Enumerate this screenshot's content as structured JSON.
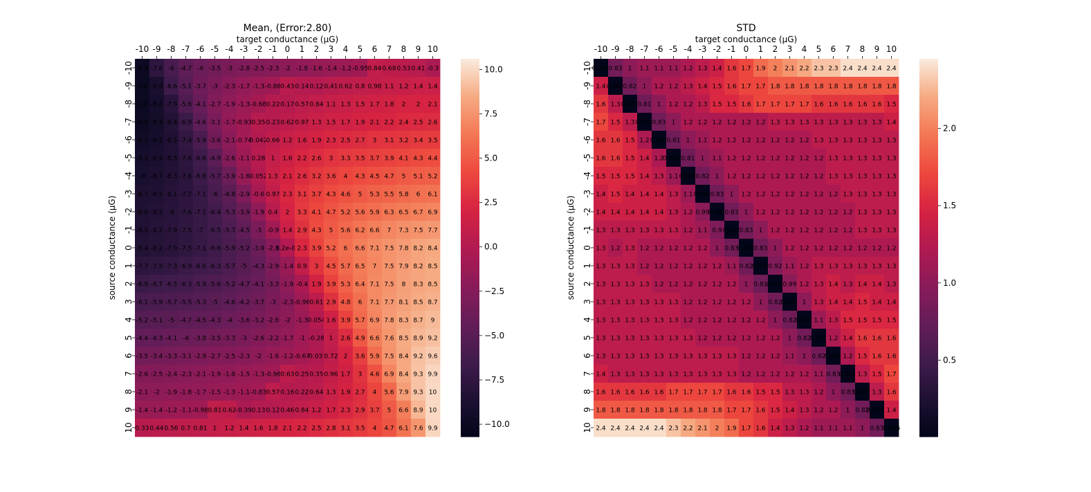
{
  "colormap": "rocket",
  "chart_data": [
    {
      "type": "heatmap",
      "title": "Mean, (Error:2.80)",
      "xlabel": "target conductance (μG)",
      "ylabel": "source conductance (μG)",
      "x_ticks": [
        "-10",
        "-9",
        "-8",
        "-7",
        "-6",
        "-5",
        "-4",
        "-3",
        "-2",
        "-1",
        "0",
        "1",
        "2",
        "3",
        "4",
        "5",
        "6",
        "7",
        "8",
        "9",
        "10"
      ],
      "y_ticks": [
        "-10",
        "-9",
        "-8",
        "-7",
        "-6",
        "-5",
        "-4",
        "-3",
        "-2",
        "-1",
        "0",
        "1",
        "2",
        "3",
        "4",
        "5",
        "6",
        "7",
        "8",
        "9",
        "10"
      ],
      "vmin": -10.7,
      "vmax": 10.6,
      "colorbar_ticks": [
        "10.0",
        "7.5",
        "5.0",
        "2.5",
        "0.0",
        "−2.5",
        "−5.0",
        "−7.5",
        "−10.0"
      ],
      "colorbar_tick_values": [
        10,
        7.5,
        5,
        2.5,
        0,
        -2.5,
        -5,
        -7.5,
        -10
      ],
      "labels": [
        [
          "-9.9",
          "-7.6",
          "-6",
          "-4.7",
          "-4",
          "-3.5",
          "-3",
          "-2.8",
          "-2.5",
          "-2.3",
          "-2",
          "-1.8",
          "-1.6",
          "-1.4",
          "-1.2",
          "-0.95",
          "0.84",
          "0.68",
          "0.53",
          "0.41",
          "-0.3"
        ],
        [
          "-10",
          "-8.9",
          "-6.6",
          "-5.1",
          "-3.7",
          "-3",
          "-2.3",
          "-1.7",
          "-1.3",
          "-0.86",
          "0.43",
          "0.14",
          "0.12",
          "0.41",
          "0.62",
          "0.8",
          "0.98",
          "1.1",
          "1.2",
          "1.4",
          "1.4"
        ],
        [
          "-10",
          "-9.2",
          "-7.9",
          "-5.6",
          "-4.1",
          "-2.7",
          "-1.9",
          "-1.3",
          "-0.68",
          "0.22",
          "0.17",
          "0.57",
          "0.84",
          "1.1",
          "1.3",
          "1.5",
          "1.7",
          "1.8",
          "2",
          "2",
          "2.1"
        ],
        [
          "-9.9",
          "-9.3",
          "-8.4",
          "-6.9",
          "-4.6",
          "-3.1",
          "-1.7",
          "-0.93",
          "0.35",
          "0.23",
          "0.62",
          "0.97",
          "1.3",
          "1.5",
          "1.7",
          "1.9",
          "2.1",
          "2.2",
          "2.4",
          "2.5",
          "2.6"
        ],
        [
          "-9.5",
          "-9.2",
          "-8.5",
          "-7.4",
          "-5.9",
          "-3.6",
          "-2.1",
          "-0.74",
          "0.042",
          "0.66",
          "1.2",
          "1.6",
          "1.9",
          "2.3",
          "2.5",
          "2.7",
          "3",
          "3.1",
          "3.2",
          "3.4",
          "3.5"
        ],
        [
          "-9.2",
          "-8.9",
          "-8.5",
          "-7.6",
          "-6.6",
          "-4.9",
          "-2.6",
          "-1.1",
          "0.28",
          "1",
          "1.6",
          "2.2",
          "2.6",
          "3",
          "3.3",
          "3.5",
          "3.7",
          "3.9",
          "4.1",
          "4.3",
          "4.4"
        ],
        [
          "-9",
          "-8.7",
          "-8.3",
          "-7.8",
          "-6.8",
          "-5.7",
          "-3.9",
          "-1.6",
          "0.052",
          "1.3",
          "2.1",
          "2.6",
          "3.2",
          "3.6",
          "4",
          "4.3",
          "4.5",
          "4.7",
          "5",
          "5.1",
          "5.2"
        ],
        [
          "-8.7",
          "-8.5",
          "-8.1",
          "-7.7",
          "-7.1",
          "-6",
          "-4.8",
          "-2.9",
          "-0.6",
          "0.97",
          "2.3",
          "3.1",
          "3.7",
          "4.3",
          "4.6",
          "5",
          "5.3",
          "5.5",
          "5.8",
          "6",
          "6.1"
        ],
        [
          "-8.6",
          "-8.3",
          "-8",
          "-7.6",
          "-7.1",
          "-6.4",
          "-5.3",
          "-3.9",
          "-1.9",
          "0.4",
          "2",
          "3.3",
          "4.1",
          "4.7",
          "5.2",
          "5.6",
          "5.9",
          "6.3",
          "6.5",
          "6.7",
          "6.9"
        ],
        [
          "-8.5",
          "-8.2",
          "-7.9",
          "-7.5",
          "-7",
          "-6.5",
          "-5.7",
          "-4.5",
          "-3",
          "-0.9",
          "1.4",
          "2.9",
          "4.3",
          "5",
          "5.6",
          "6.2",
          "6.6",
          "7",
          "7.3",
          "7.5",
          "7.7"
        ],
        [
          "-8.4",
          "-8.2",
          "-7.9",
          "-7.5",
          "-7.1",
          "-6.6",
          "-5.9",
          "-5.2",
          "-3.9",
          "-2.3",
          "8.2e-03",
          "2.3",
          "3.9",
          "5.2",
          "6",
          "6.6",
          "7.1",
          "7.5",
          "7.8",
          "8.2",
          "8.4"
        ],
        [
          "-7.7",
          "-7.5",
          "-7.3",
          "-6.9",
          "-6.6",
          "-6.3",
          "-5.7",
          "-5",
          "-4.3",
          "-2.9",
          "-1.4",
          "0.9",
          "3",
          "4.5",
          "5.7",
          "6.5",
          "7",
          "7.5",
          "7.9",
          "8.2",
          "8.5"
        ],
        [
          "-6.9",
          "-6.7",
          "-6.5",
          "-6.3",
          "-5.9",
          "-5.6",
          "-5.2",
          "-4.7",
          "-4.1",
          "-3.3",
          "-1.9",
          "-0.4",
          "1.9",
          "3.9",
          "5.3",
          "6.4",
          "7.1",
          "7.5",
          "8",
          "8.3",
          "8.5"
        ],
        [
          "-6.1",
          "-5.9",
          "-5.7",
          "-5.5",
          "-5.3",
          "-5",
          "-4.6",
          "-4.2",
          "-3.7",
          "-3",
          "-2.3",
          "-0.96",
          "0.61",
          "2.9",
          "4.8",
          "6",
          "7.1",
          "7.7",
          "8.1",
          "8.5",
          "8.7"
        ],
        [
          "-5.2",
          "-5.1",
          "-5",
          "-4.7",
          "-4.5",
          "-4.3",
          "-4",
          "-3.6",
          "-3.2",
          "-2.6",
          "-2",
          "-1.3",
          "0.054",
          "1.6",
          "3.9",
          "5.7",
          "6.9",
          "7.8",
          "8.3",
          "8.7",
          "9"
        ],
        [
          "-4.4",
          "-4.3",
          "-4.1",
          "-4",
          "-3.8",
          "-3.5",
          "-3.3",
          "-3",
          "-2.6",
          "-2.2",
          "-1.7",
          "-1",
          "-0.28",
          "1",
          "2.6",
          "4.9",
          "6.6",
          "7.6",
          "8.5",
          "8.9",
          "9.2"
        ],
        [
          "-3.5",
          "-3.4",
          "-3.3",
          "-3.1",
          "-2.9",
          "-2.7",
          "-2.5",
          "-2.3",
          "-2",
          "-1.6",
          "-1.2",
          "-0.67",
          "-0.031",
          "0.72",
          "2",
          "3.6",
          "5.9",
          "7.5",
          "8.4",
          "9.2",
          "9.6"
        ],
        [
          "-2.6",
          "-2.5",
          "-2.4",
          "-2.3",
          "-2.1",
          "-1.9",
          "-1.8",
          "-1.5",
          "-1.3",
          "-0.96",
          "0.63",
          "0.25",
          "0.35",
          "0.96",
          "1.7",
          "3",
          "4.6",
          "6.9",
          "8.4",
          "9.3",
          "9.9"
        ],
        [
          "-2.1",
          "-2",
          "-1.9",
          "-1.8",
          "-1.7",
          "-1.5",
          "-1.3",
          "-1.1",
          "-0.83",
          "0.57",
          "0.16",
          "0.22",
          "0.64",
          "1.3",
          "1.9",
          "2.7",
          "4",
          "5.6",
          "7.9",
          "9.3",
          "10"
        ],
        [
          "-1.4",
          "-1.4",
          "-1.2",
          "-1.1",
          "-0.98",
          "0.81",
          "0.62",
          "-0.39",
          "0.13",
          "0.12",
          "0.46",
          "0.84",
          "1.2",
          "1.7",
          "2.3",
          "2.9",
          "3.7",
          "5",
          "6.6",
          "8.9",
          "10"
        ],
        [
          "0.33",
          "0.44",
          "0.56",
          "0.7",
          "0.81",
          "1",
          "1.2",
          "1.4",
          "1.6",
          "1.8",
          "2.1",
          "2.2",
          "2.5",
          "2.8",
          "3.1",
          "3.5",
          "4",
          "4.7",
          "6.1",
          "7.6",
          "9.9"
        ]
      ]
    },
    {
      "type": "heatmap",
      "title": "STD",
      "xlabel": "target conductance (μG)",
      "ylabel": "source conductance (μG)",
      "x_ticks": [
        "-10",
        "-9",
        "-8",
        "-7",
        "-6",
        "-5",
        "-4",
        "-3",
        "-2",
        "-1",
        "0",
        "1",
        "2",
        "3",
        "4",
        "5",
        "6",
        "7",
        "8",
        "9",
        "10"
      ],
      "y_ticks": [
        "-10",
        "-9",
        "-8",
        "-7",
        "-6",
        "-5",
        "-4",
        "-3",
        "-2",
        "-1",
        "0",
        "1",
        "2",
        "3",
        "4",
        "5",
        "6",
        "7",
        "8",
        "9",
        "10"
      ],
      "vmin": 0.005,
      "vmax": 2.45,
      "colorbar_ticks": [
        "2.0",
        "1.5",
        "1.0",
        "0.5"
      ],
      "colorbar_tick_values": [
        2.0,
        1.5,
        1.0,
        0.5
      ],
      "labels": [
        [
          "0.005",
          "0.83",
          "1",
          "1.1",
          "1.1",
          "1.1",
          "1.2",
          "1.3",
          "1.4",
          "1.6",
          "1.7",
          "1.9",
          "2",
          "2.1",
          "2.2",
          "2.3",
          "2.3",
          "2.4",
          "2.4",
          "2.4",
          "2.4"
        ],
        [
          "1.4",
          "0.005",
          "0.82",
          "1",
          "1.2",
          "1.2",
          "1.3",
          "1.4",
          "1.5",
          "1.6",
          "1.7",
          "1.7",
          "1.8",
          "1.8",
          "1.8",
          "1.8",
          "1.8",
          "1.8",
          "1.8",
          "1.8",
          "1.8"
        ],
        [
          "1.6",
          "1.3",
          "0.005",
          "0.81",
          "1",
          "1.2",
          "1.2",
          "1.3",
          "1.5",
          "1.5",
          "1.6",
          "1.7",
          "1.7",
          "1.7",
          "1.7",
          "1.6",
          "1.6",
          "1.6",
          "1.6",
          "1.6",
          "1.5"
        ],
        [
          "1.7",
          "1.5",
          "1.3",
          "0.005",
          "0.83",
          "1",
          "1.2",
          "1.2",
          "1.2",
          "1.2",
          "1.2",
          "1.2",
          "1.3",
          "1.3",
          "1.3",
          "1.3",
          "1.3",
          "1.3",
          "1.3",
          "1.3",
          "1.4"
        ],
        [
          "1.6",
          "1.6",
          "1.5",
          "1.2",
          "0.005",
          "0.81",
          "1",
          "1.1",
          "1.2",
          "1.2",
          "1.2",
          "1.2",
          "1.2",
          "1.2",
          "1.2",
          "1.3",
          "1.3",
          "1.3",
          "1.3",
          "1.3",
          "1.3"
        ],
        [
          "1.6",
          "1.6",
          "1.5",
          "1.4",
          "1.2",
          "0.0049",
          "0.81",
          "1",
          "1.1",
          "1.2",
          "1.2",
          "1.2",
          "1.2",
          "1.2",
          "1.2",
          "1.2",
          "1.3",
          "1.3",
          "1.3",
          "1.3",
          "1.3"
        ],
        [
          "1.5",
          "1.5",
          "1.5",
          "1.4",
          "1.3",
          "1.1",
          "0.005",
          "0.82",
          "1",
          "1.2",
          "1.2",
          "1.2",
          "1.2",
          "1.2",
          "1.2",
          "1.2",
          "1.3",
          "1.3",
          "1.3",
          "1.3",
          "1.3"
        ],
        [
          "1.4",
          "1.5",
          "1.4",
          "1.4",
          "1.4",
          "1.3",
          "1.1",
          "0.005",
          "0.83",
          "1",
          "1.2",
          "1.2",
          "1.2",
          "1.2",
          "1.2",
          "1.2",
          "1.2",
          "1.3",
          "1.3",
          "1.3",
          "1.3"
        ],
        [
          "1.4",
          "1.4",
          "1.4",
          "1.4",
          "1.4",
          "1.3",
          "1.2",
          "0.99",
          "0.005",
          "0.83",
          "1",
          "1.2",
          "1.2",
          "1.2",
          "1.2",
          "1.2",
          "1.2",
          "1.2",
          "1.3",
          "1.3",
          "1.3"
        ],
        [
          "1.3",
          "1.3",
          "1.3",
          "1.3",
          "1.3",
          "1.3",
          "1.2",
          "1.1",
          "0.9",
          "0.005",
          "0.83",
          "1",
          "1.2",
          "1.2",
          "1.2",
          "1.2",
          "1.2",
          "1.2",
          "1.3",
          "1.3",
          "1.3"
        ],
        [
          "1.3",
          "1.2",
          "1.3",
          "1.2",
          "1.2",
          "1.2",
          "1.2",
          "1.2",
          "1",
          "0.83",
          "0.005",
          "0.83",
          "1",
          "1.2",
          "1.2",
          "1.2",
          "1.2",
          "1.2",
          "1.2",
          "1.2",
          "1.2"
        ],
        [
          "1.3",
          "1.3",
          "1.3",
          "1.2",
          "1.2",
          "1.2",
          "1.2",
          "1.2",
          "1.2",
          "1.1",
          "0.82",
          "0.005",
          "0.92",
          "1.1",
          "1.2",
          "1.3",
          "1.3",
          "1.3",
          "1.3",
          "1.3",
          "1.3"
        ],
        [
          "1.3",
          "1.3",
          "1.3",
          "1.3",
          "1.2",
          "1.2",
          "1.2",
          "1.2",
          "1.2",
          "1.2",
          "1",
          "0.81",
          "0.005",
          "0.99",
          "1.2",
          "1.3",
          "1.4",
          "1.3",
          "1.4",
          "1.4",
          "1.3"
        ],
        [
          "1.3",
          "1.3",
          "1.3",
          "1.3",
          "1.3",
          "1.3",
          "1.2",
          "1.2",
          "1.2",
          "1.2",
          "1.2",
          "1",
          "0.82",
          "0.005",
          "1",
          "1.3",
          "1.4",
          "1.4",
          "1.5",
          "1.4",
          "1.4"
        ],
        [
          "1.3",
          "1.3",
          "1.3",
          "1.3",
          "1.3",
          "1.3",
          "1.2",
          "1.2",
          "1.2",
          "1.2",
          "1.2",
          "1.2",
          "1",
          "0.82",
          "0.005",
          "1.1",
          "1.3",
          "1.5",
          "1.5",
          "1.5",
          "1.5"
        ],
        [
          "1.3",
          "1.3",
          "1.3",
          "1.3",
          "1.3",
          "1.3",
          "1.3",
          "1.2",
          "1.2",
          "1.2",
          "1.2",
          "1.2",
          "1.2",
          "1",
          "0.82",
          "0.005",
          "1.2",
          "1.4",
          "1.6",
          "1.6",
          "1.6"
        ],
        [
          "1.3",
          "1.3",
          "1.3",
          "1.3",
          "1.3",
          "1.3",
          "1.3",
          "1.3",
          "1.3",
          "1.3",
          "1.2",
          "1.2",
          "1.2",
          "1.1",
          "1",
          "0.82",
          "0.005",
          "1.2",
          "1.5",
          "1.6",
          "1.6"
        ],
        [
          "1.4",
          "1.3",
          "1.3",
          "1.3",
          "1.3",
          "1.3",
          "1.3",
          "1.3",
          "1.3",
          "1.3",
          "1.2",
          "1.2",
          "1.2",
          "1.2",
          "1.2",
          "1.1",
          "0.83",
          "0.005",
          "1.3",
          "1.5",
          "1.7"
        ],
        [
          "1.6",
          "1.6",
          "1.6",
          "1.6",
          "1.6",
          "1.7",
          "1.7",
          "1.7",
          "1.7",
          "1.6",
          "1.6",
          "1.5",
          "1.5",
          "1.3",
          "1.3",
          "1.2",
          "1",
          "0.83",
          "0.005",
          "1.3",
          "1.6"
        ],
        [
          "1.8",
          "1.8",
          "1.8",
          "1.8",
          "1.8",
          "1.8",
          "1.8",
          "1.8",
          "1.8",
          "1.7",
          "1.7",
          "1.6",
          "1.5",
          "1.4",
          "1.3",
          "1.2",
          "1.2",
          "1",
          "0.82",
          "0.0049",
          "1.4"
        ],
        [
          "2.4",
          "2.4",
          "2.4",
          "2.4",
          "2.4",
          "2.3",
          "2.2",
          "2.1",
          "2",
          "1.9",
          "1.7",
          "1.6",
          "1.4",
          "1.3",
          "1.2",
          "1.1",
          "1.1",
          "1.1",
          "1",
          "0.83",
          "0.005"
        ]
      ]
    }
  ]
}
